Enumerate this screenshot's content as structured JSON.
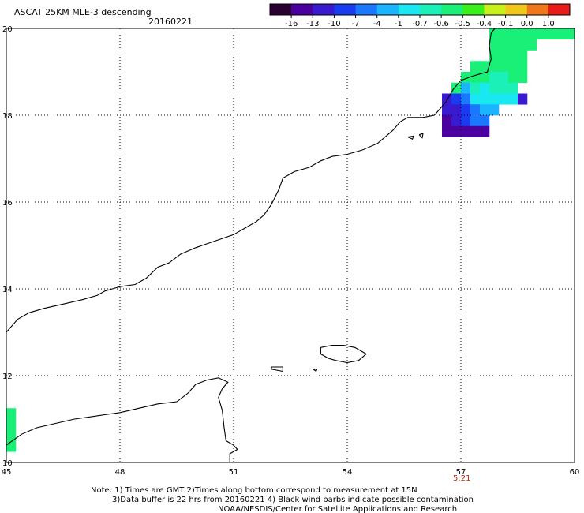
{
  "header": {
    "title": "ASCAT 25KM MLE-3 descending",
    "date": "20160221"
  },
  "colorbar": {
    "tick_labels": [
      "-16",
      "-13",
      "-10",
      "-7",
      "-4",
      "-1",
      "-0.7",
      "-0.6",
      "-0.5",
      "-0.4",
      "-0.1",
      "0.0",
      "1.0"
    ],
    "colors": [
      "#2a0030",
      "#4b00a0",
      "#3a1ad0",
      "#1a3cf0",
      "#1a78ff",
      "#1ab4ff",
      "#1ae8f0",
      "#1af0b8",
      "#1af078",
      "#3af01a",
      "#c8f01a",
      "#f0c81a",
      "#f0781a",
      "#e81a1a"
    ]
  },
  "axes": {
    "lon_labels": [
      "45",
      "48",
      "51",
      "54",
      "57",
      "60"
    ],
    "lat_labels": [
      "20",
      "18",
      "16",
      "14",
      "12",
      "10"
    ],
    "lon_range": [
      45,
      60
    ],
    "lat_range": [
      10,
      20
    ]
  },
  "time_label": "5:21",
  "notes": {
    "line1": "Note: 1) Times are GMT 2)Times along bottom correspond to measurement at 15N",
    "line2": "3)Data buffer is 22 hrs from 20160221 4) Black wind barbs indicate possible contamination",
    "line3": "NOAA/NESDIS/Center for Satellite Applications and Research"
  },
  "swath": {
    "cell_deg": 0.25,
    "cells": [
      {
        "lon": 57.75,
        "lat": 19.75,
        "c": 8
      },
      {
        "lon": 58.0,
        "lat": 19.75,
        "c": 8
      },
      {
        "lon": 58.25,
        "lat": 19.75,
        "c": 8
      },
      {
        "lon": 58.5,
        "lat": 19.75,
        "c": 8
      },
      {
        "lon": 58.75,
        "lat": 19.75,
        "c": 8
      },
      {
        "lon": 59.0,
        "lat": 19.75,
        "c": 8
      },
      {
        "lon": 59.25,
        "lat": 19.75,
        "c": 8
      },
      {
        "lon": 59.5,
        "lat": 19.75,
        "c": 8
      },
      {
        "lon": 59.75,
        "lat": 19.75,
        "c": 8
      },
      {
        "lon": 57.75,
        "lat": 19.5,
        "c": 8
      },
      {
        "lon": 58.0,
        "lat": 19.5,
        "c": 8
      },
      {
        "lon": 58.25,
        "lat": 19.5,
        "c": 8
      },
      {
        "lon": 58.5,
        "lat": 19.5,
        "c": 8
      },
      {
        "lon": 58.75,
        "lat": 19.5,
        "c": 8
      },
      {
        "lon": 57.75,
        "lat": 19.25,
        "c": 8
      },
      {
        "lon": 58.0,
        "lat": 19.25,
        "c": 8
      },
      {
        "lon": 58.25,
        "lat": 19.25,
        "c": 8
      },
      {
        "lon": 58.5,
        "lat": 19.25,
        "c": 8
      },
      {
        "lon": 57.25,
        "lat": 19.0,
        "c": 8
      },
      {
        "lon": 57.5,
        "lat": 19.0,
        "c": 8
      },
      {
        "lon": 57.75,
        "lat": 19.0,
        "c": 8
      },
      {
        "lon": 58.0,
        "lat": 19.0,
        "c": 8
      },
      {
        "lon": 58.25,
        "lat": 19.0,
        "c": 8
      },
      {
        "lon": 58.5,
        "lat": 19.0,
        "c": 8
      },
      {
        "lon": 57.0,
        "lat": 18.75,
        "c": 8
      },
      {
        "lon": 57.25,
        "lat": 18.75,
        "c": 8
      },
      {
        "lon": 57.5,
        "lat": 18.75,
        "c": 8
      },
      {
        "lon": 57.75,
        "lat": 18.75,
        "c": 7
      },
      {
        "lon": 58.0,
        "lat": 18.75,
        "c": 7
      },
      {
        "lon": 58.25,
        "lat": 18.75,
        "c": 8
      },
      {
        "lon": 58.5,
        "lat": 18.75,
        "c": 8
      },
      {
        "lon": 56.75,
        "lat": 18.5,
        "c": 8
      },
      {
        "lon": 57.0,
        "lat": 18.5,
        "c": 5
      },
      {
        "lon": 57.25,
        "lat": 18.5,
        "c": 7
      },
      {
        "lon": 57.5,
        "lat": 18.5,
        "c": 6
      },
      {
        "lon": 57.75,
        "lat": 18.5,
        "c": 7
      },
      {
        "lon": 58.0,
        "lat": 18.5,
        "c": 7
      },
      {
        "lon": 58.25,
        "lat": 18.5,
        "c": 7
      },
      {
        "lon": 56.5,
        "lat": 18.25,
        "c": 2
      },
      {
        "lon": 56.75,
        "lat": 18.25,
        "c": 3
      },
      {
        "lon": 57.0,
        "lat": 18.25,
        "c": 4
      },
      {
        "lon": 57.25,
        "lat": 18.25,
        "c": 6
      },
      {
        "lon": 57.5,
        "lat": 18.25,
        "c": 6
      },
      {
        "lon": 57.75,
        "lat": 18.25,
        "c": 6
      },
      {
        "lon": 58.0,
        "lat": 18.25,
        "c": 6
      },
      {
        "lon": 58.25,
        "lat": 18.25,
        "c": 6
      },
      {
        "lon": 58.5,
        "lat": 18.25,
        "c": 2
      },
      {
        "lon": 56.5,
        "lat": 18.0,
        "c": 2
      },
      {
        "lon": 56.75,
        "lat": 18.0,
        "c": 2
      },
      {
        "lon": 57.0,
        "lat": 18.0,
        "c": 3
      },
      {
        "lon": 57.25,
        "lat": 18.0,
        "c": 4
      },
      {
        "lon": 57.5,
        "lat": 18.0,
        "c": 5
      },
      {
        "lon": 57.75,
        "lat": 18.0,
        "c": 5
      },
      {
        "lon": 56.5,
        "lat": 17.75,
        "c": 1
      },
      {
        "lon": 56.75,
        "lat": 17.75,
        "c": 2
      },
      {
        "lon": 57.0,
        "lat": 17.75,
        "c": 3
      },
      {
        "lon": 57.25,
        "lat": 17.75,
        "c": 4
      },
      {
        "lon": 57.5,
        "lat": 17.75,
        "c": 4
      },
      {
        "lon": 56.5,
        "lat": 17.5,
        "c": 1
      },
      {
        "lon": 56.75,
        "lat": 17.5,
        "c": 1
      },
      {
        "lon": 57.0,
        "lat": 17.5,
        "c": 1
      },
      {
        "lon": 57.25,
        "lat": 17.5,
        "c": 1
      },
      {
        "lon": 57.5,
        "lat": 17.5,
        "c": 1
      },
      {
        "lon": 45.0,
        "lat": 11.0,
        "c": 8
      },
      {
        "lon": 45.0,
        "lat": 10.75,
        "c": 8
      },
      {
        "lon": 45.0,
        "lat": 10.5,
        "c": 8
      },
      {
        "lon": 45.0,
        "lat": 10.25,
        "c": 8
      }
    ]
  },
  "coastlines": [
    {
      "name": "arabian-coast",
      "points": [
        [
          45.0,
          13.0
        ],
        [
          45.3,
          13.3
        ],
        [
          45.6,
          13.45
        ],
        [
          46.0,
          13.55
        ],
        [
          46.5,
          13.65
        ],
        [
          47.0,
          13.75
        ],
        [
          47.4,
          13.85
        ],
        [
          47.6,
          13.95
        ],
        [
          47.8,
          14.0
        ],
        [
          48.0,
          14.05
        ],
        [
          48.4,
          14.1
        ],
        [
          48.7,
          14.25
        ],
        [
          49.0,
          14.5
        ],
        [
          49.3,
          14.6
        ],
        [
          49.6,
          14.8
        ],
        [
          50.0,
          14.95
        ],
        [
          50.5,
          15.1
        ],
        [
          51.0,
          15.25
        ],
        [
          51.3,
          15.4
        ],
        [
          51.6,
          15.55
        ],
        [
          51.8,
          15.7
        ],
        [
          52.0,
          15.95
        ],
        [
          52.2,
          16.3
        ],
        [
          52.3,
          16.55
        ],
        [
          52.6,
          16.7
        ],
        [
          53.0,
          16.8
        ],
        [
          53.3,
          16.95
        ],
        [
          53.6,
          17.05
        ],
        [
          54.0,
          17.1
        ],
        [
          54.4,
          17.2
        ],
        [
          54.8,
          17.35
        ],
        [
          55.2,
          17.65
        ],
        [
          55.4,
          17.85
        ],
        [
          55.6,
          17.95
        ],
        [
          56.0,
          17.95
        ],
        [
          56.3,
          18.0
        ],
        [
          56.6,
          18.3
        ],
        [
          56.8,
          18.6
        ],
        [
          57.0,
          18.8
        ],
        [
          57.3,
          18.9
        ],
        [
          57.7,
          19.0
        ],
        [
          57.8,
          19.3
        ],
        [
          57.75,
          19.6
        ],
        [
          57.8,
          19.9
        ],
        [
          57.9,
          20.0
        ]
      ]
    },
    {
      "name": "somali-coast",
      "points": [
        [
          45.0,
          10.4
        ],
        [
          45.4,
          10.65
        ],
        [
          45.8,
          10.8
        ],
        [
          46.3,
          10.9
        ],
        [
          46.8,
          11.0
        ],
        [
          47.2,
          11.05
        ],
        [
          47.6,
          11.1
        ],
        [
          48.0,
          11.15
        ],
        [
          48.5,
          11.25
        ],
        [
          49.0,
          11.35
        ],
        [
          49.5,
          11.4
        ],
        [
          49.8,
          11.6
        ],
        [
          50.0,
          11.8
        ],
        [
          50.3,
          11.9
        ],
        [
          50.6,
          11.95
        ],
        [
          50.85,
          11.85
        ],
        [
          50.7,
          11.7
        ],
        [
          50.6,
          11.5
        ],
        [
          50.7,
          11.2
        ],
        [
          50.75,
          10.8
        ],
        [
          50.8,
          10.5
        ],
        [
          51.0,
          10.4
        ],
        [
          51.1,
          10.3
        ],
        [
          50.9,
          10.2
        ],
        [
          50.9,
          10.0
        ]
      ]
    },
    {
      "name": "socotra-island",
      "points": [
        [
          53.3,
          12.65
        ],
        [
          53.6,
          12.7
        ],
        [
          53.9,
          12.7
        ],
        [
          54.2,
          12.65
        ],
        [
          54.5,
          12.5
        ],
        [
          54.3,
          12.35
        ],
        [
          54.0,
          12.3
        ],
        [
          53.7,
          12.35
        ],
        [
          53.5,
          12.4
        ],
        [
          53.3,
          12.5
        ],
        [
          53.3,
          12.65
        ]
      ]
    },
    {
      "name": "kuria-muria-1",
      "points": [
        [
          55.6,
          17.5
        ],
        [
          55.75,
          17.52
        ],
        [
          55.72,
          17.45
        ],
        [
          55.6,
          17.5
        ]
      ]
    },
    {
      "name": "kuria-muria-2",
      "points": [
        [
          55.9,
          17.55
        ],
        [
          56.0,
          17.58
        ],
        [
          55.98,
          17.48
        ],
        [
          55.9,
          17.55
        ]
      ]
    },
    {
      "name": "abd-al-kuri",
      "points": [
        [
          52.0,
          12.2
        ],
        [
          52.3,
          12.2
        ],
        [
          52.3,
          12.1
        ],
        [
          52.0,
          12.15
        ],
        [
          52.0,
          12.2
        ]
      ]
    },
    {
      "name": "small-isle",
      "points": [
        [
          53.1,
          12.15
        ],
        [
          53.2,
          12.15
        ],
        [
          53.18,
          12.1
        ],
        [
          53.1,
          12.15
        ]
      ]
    }
  ]
}
